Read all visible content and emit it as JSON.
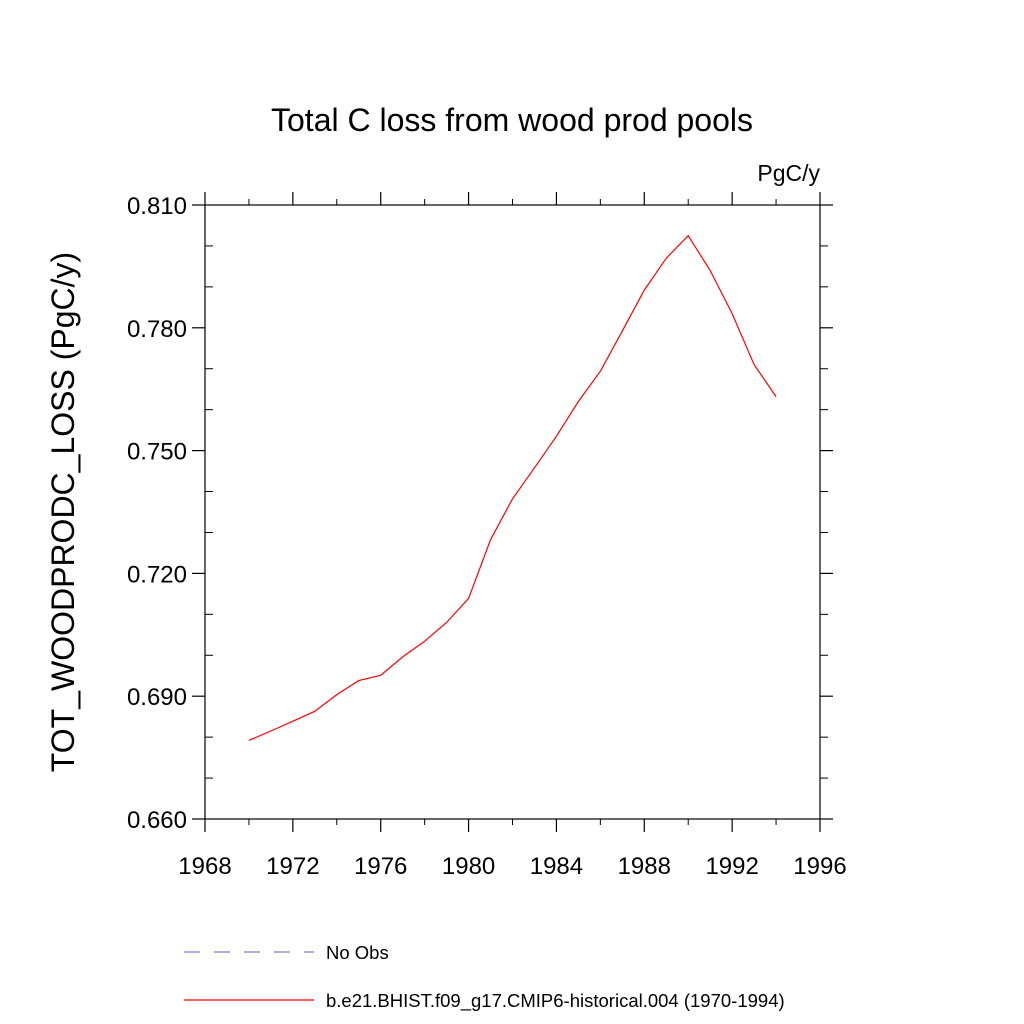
{
  "chart_data": {
    "type": "line",
    "title": "Total C loss from wood prod pools",
    "units_label": "PgC/y",
    "ylabel": "TOT_WOODPRODC_LOSS  (PgC/y)",
    "xlabel": "",
    "xlim": [
      1968,
      1996
    ],
    "ylim": [
      0.66,
      0.81
    ],
    "x_ticks": [
      1968,
      1972,
      1976,
      1980,
      1984,
      1988,
      1992,
      1996
    ],
    "x_tick_labels": [
      "1968",
      "1972",
      "1976",
      "1980",
      "1984",
      "1988",
      "1992",
      "1996"
    ],
    "y_ticks": [
      0.66,
      0.69,
      0.72,
      0.75,
      0.78,
      0.81
    ],
    "y_tick_labels": [
      "0.660",
      "0.690",
      "0.720",
      "0.750",
      "0.780",
      "0.810"
    ],
    "grid": false,
    "legend_position": "bottom",
    "series": [
      {
        "name": "b.e21.BHIST.f09_g17.CMIP6-historical.004 (1970-1994)",
        "color": "#ff0000",
        "dash": "solid",
        "x": [
          1970,
          1971,
          1972,
          1973,
          1974,
          1975,
          1976,
          1977,
          1978,
          1979,
          1980,
          1981,
          1982,
          1983,
          1984,
          1985,
          1986,
          1987,
          1988,
          1989,
          1990,
          1991,
          1992,
          1993,
          1994
        ],
        "y": [
          0.6792,
          0.6815,
          0.6839,
          0.6863,
          0.6904,
          0.6938,
          0.6951,
          0.6996,
          0.7034,
          0.708,
          0.7139,
          0.7282,
          0.7382,
          0.7458,
          0.7535,
          0.762,
          0.7694,
          0.7792,
          0.7892,
          0.797,
          0.8025,
          0.794,
          0.7835,
          0.771,
          0.7632
        ]
      }
    ],
    "legend": [
      {
        "label": "No Obs",
        "color": "#7f7fd0",
        "dash": "dashed"
      },
      {
        "label": "b.e21.BHIST.f09_g17.CMIP6-historical.004 (1970-1994)",
        "color": "#ff0000",
        "dash": "solid"
      }
    ]
  }
}
